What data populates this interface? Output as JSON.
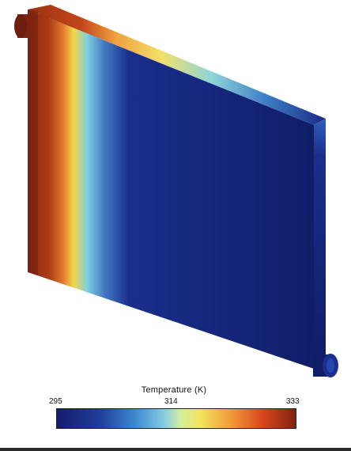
{
  "legend": {
    "title": "Temperature (K)",
    "min_label": "295",
    "mid_label": "314",
    "max_label": "333"
  },
  "colors": {
    "hot": "#8e2a12",
    "warm": "#d8591c",
    "yellow": "#f1d94a",
    "mid": "#79c3da",
    "cool": "#2a5bb6",
    "cold": "#0f1f6b"
  }
}
